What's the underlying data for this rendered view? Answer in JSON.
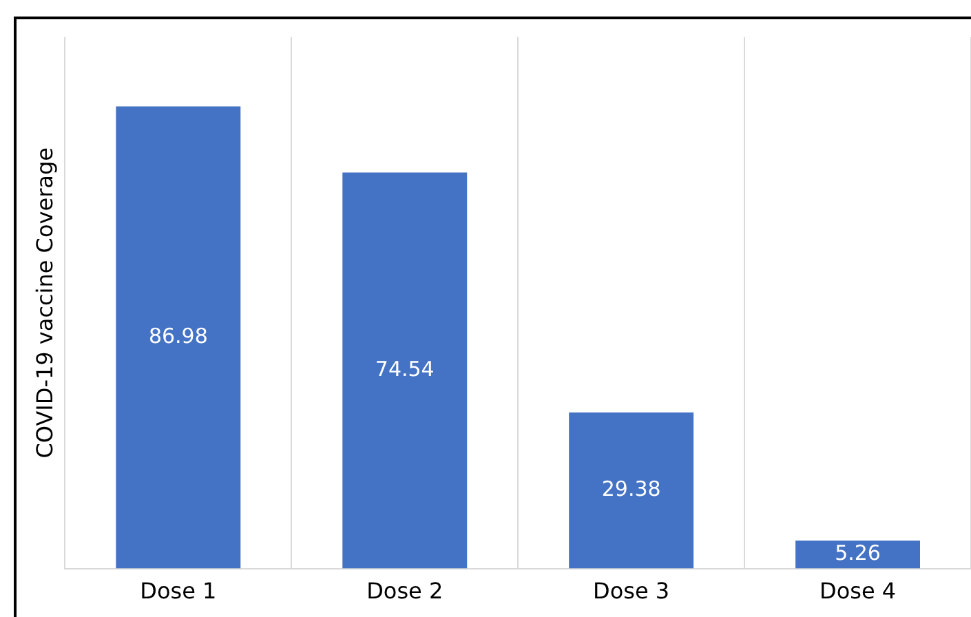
{
  "chart_data": {
    "type": "bar",
    "ylabel": "COVID-19 vaccine Coverage",
    "categories": [
      "Dose 1",
      "Dose 2",
      "Dose 3",
      "Dose 4"
    ],
    "values": [
      86.98,
      74.54,
      29.38,
      5.26
    ],
    "color": "#4472c4",
    "ylim": [
      0,
      100
    ],
    "grid": "x",
    "data_labels": true,
    "tick_labels": "x",
    "legend": false
  }
}
